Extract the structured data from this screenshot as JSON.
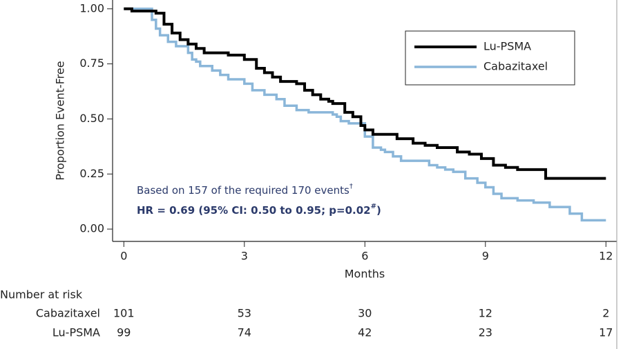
{
  "chart_data": {
    "type": "step",
    "y_label": "Proportion Event-Free",
    "x_label": "Months",
    "xlim": [
      -0.28,
      12.27
    ],
    "ylim": [
      -0.056,
      1.04
    ],
    "xticks": [
      0,
      3,
      6,
      9,
      12
    ],
    "yticks": [
      {
        "value": 1,
        "label": "1.00"
      },
      {
        "value": 0.75,
        "label": "0.75"
      },
      {
        "value": 0.5,
        "label": "0.50"
      },
      {
        "value": 0.25,
        "label": "0.25"
      },
      {
        "value": 0,
        "label": "0.00"
      }
    ],
    "series": [
      {
        "name": "Lu-PSMA",
        "color": "#000000",
        "x": [
          0,
          0.2,
          0.8,
          1.0,
          1.2,
          1.4,
          1.6,
          1.8,
          2.0,
          2.6,
          3.0,
          3.3,
          3.5,
          3.7,
          3.9,
          4.3,
          4.5,
          4.7,
          4.9,
          5.1,
          5.2,
          5.5,
          5.7,
          5.9,
          6.0,
          6.2,
          6.8,
          7.2,
          7.5,
          7.8,
          8.3,
          8.6,
          8.9,
          9.2,
          9.5,
          9.8,
          10.5,
          12.0
        ],
        "values": [
          1.0,
          0.99,
          0.98,
          0.93,
          0.89,
          0.86,
          0.84,
          0.82,
          0.8,
          0.79,
          0.77,
          0.73,
          0.71,
          0.69,
          0.67,
          0.66,
          0.63,
          0.61,
          0.59,
          0.58,
          0.57,
          0.53,
          0.51,
          0.47,
          0.45,
          0.43,
          0.41,
          0.39,
          0.38,
          0.37,
          0.35,
          0.34,
          0.32,
          0.29,
          0.28,
          0.27,
          0.23,
          0.23
        ]
      },
      {
        "name": "Cabazitaxel",
        "color": "#8ab6d9",
        "x": [
          0,
          0.7,
          0.8,
          0.9,
          1.1,
          1.3,
          1.6,
          1.7,
          1.8,
          1.9,
          2.2,
          2.4,
          2.6,
          3.0,
          3.2,
          3.5,
          3.8,
          4.0,
          4.3,
          4.6,
          5.2,
          5.3,
          5.4,
          5.6,
          6.0,
          6.2,
          6.4,
          6.5,
          6.7,
          6.9,
          7.6,
          7.8,
          8.0,
          8.2,
          8.5,
          8.8,
          9.0,
          9.2,
          9.4,
          9.8,
          10.2,
          10.6,
          11.1,
          11.4,
          12.0
        ],
        "values": [
          1.0,
          0.95,
          0.91,
          0.88,
          0.85,
          0.83,
          0.8,
          0.77,
          0.76,
          0.74,
          0.72,
          0.7,
          0.68,
          0.66,
          0.63,
          0.61,
          0.59,
          0.56,
          0.54,
          0.53,
          0.52,
          0.51,
          0.49,
          0.48,
          0.42,
          0.37,
          0.36,
          0.35,
          0.33,
          0.31,
          0.29,
          0.28,
          0.27,
          0.26,
          0.23,
          0.21,
          0.19,
          0.16,
          0.14,
          0.13,
          0.12,
          0.1,
          0.07,
          0.04,
          0.04
        ]
      }
    ],
    "annotations": [
      {
        "text": "Based on 157 of the required 170 events",
        "sup": "†"
      },
      {
        "text": "HR = 0.69 (95% CI: 0.50 to 0.95; p=0.02",
        "sup": "#",
        "tail": ")"
      }
    ],
    "risk_table": {
      "title": "Number at risk",
      "rows": [
        {
          "name": "Cabazitaxel",
          "counts": [
            101,
            53,
            30,
            12,
            2
          ]
        },
        {
          "name": "Lu-PSMA",
          "counts": [
            99,
            74,
            42,
            23,
            17
          ]
        }
      ]
    }
  }
}
